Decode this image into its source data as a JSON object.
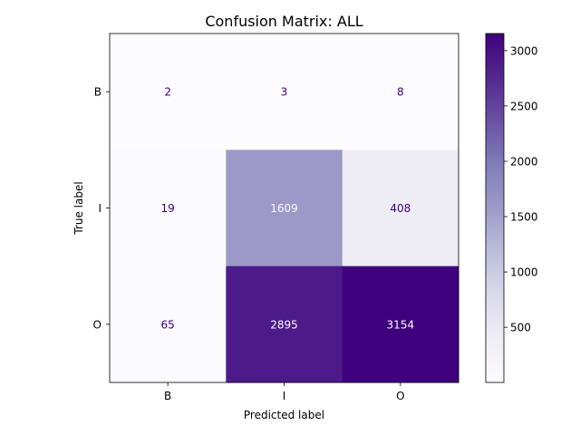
{
  "chart_data": {
    "type": "heatmap",
    "title": "Confusion Matrix: ALL",
    "xlabel": "Predicted label",
    "ylabel": "True label",
    "x_categories": [
      "B",
      "I",
      "O"
    ],
    "y_categories": [
      "B",
      "I",
      "O"
    ],
    "values": [
      [
        2,
        3,
        8
      ],
      [
        19,
        1609,
        408
      ],
      [
        65,
        2895,
        3154
      ]
    ],
    "colormap": "Purples",
    "color_range": [
      2,
      3154
    ],
    "colorbar_ticks": [
      500,
      1000,
      1500,
      2000,
      2500,
      3000
    ],
    "colors": {
      "low": "#fcfbfd",
      "high": "#3f007d",
      "text_dark": "#3f007d",
      "text_light": "#fcfbfd"
    }
  }
}
